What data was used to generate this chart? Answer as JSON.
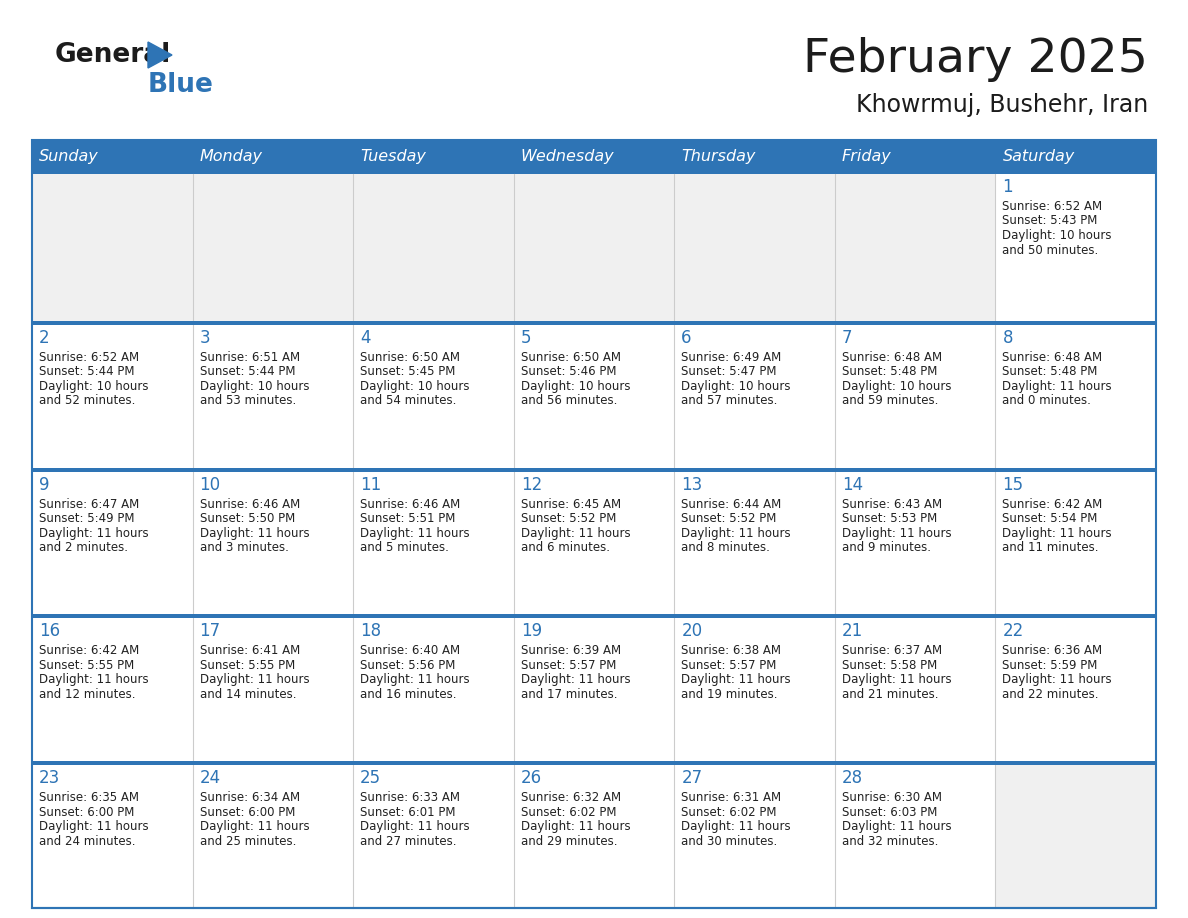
{
  "title": "February 2025",
  "subtitle": "Khowrmuj, Bushehr, Iran",
  "days_of_week": [
    "Sunday",
    "Monday",
    "Tuesday",
    "Wednesday",
    "Thursday",
    "Friday",
    "Saturday"
  ],
  "header_bg": "#2E74B5",
  "header_text": "#FFFFFF",
  "cell_bg_white": "#FFFFFF",
  "cell_bg_gray": "#F0F0F0",
  "separator_color": "#2E74B5",
  "grid_line_color": "#CCCCCC",
  "text_color": "#222222",
  "day_num_color": "#2E74B5",
  "calendar_data": [
    [
      {
        "day": null,
        "info": null
      },
      {
        "day": null,
        "info": null
      },
      {
        "day": null,
        "info": null
      },
      {
        "day": null,
        "info": null
      },
      {
        "day": null,
        "info": null
      },
      {
        "day": null,
        "info": null
      },
      {
        "day": 1,
        "info": "Sunrise: 6:52 AM\nSunset: 5:43 PM\nDaylight: 10 hours\nand 50 minutes."
      }
    ],
    [
      {
        "day": 2,
        "info": "Sunrise: 6:52 AM\nSunset: 5:44 PM\nDaylight: 10 hours\nand 52 minutes."
      },
      {
        "day": 3,
        "info": "Sunrise: 6:51 AM\nSunset: 5:44 PM\nDaylight: 10 hours\nand 53 minutes."
      },
      {
        "day": 4,
        "info": "Sunrise: 6:50 AM\nSunset: 5:45 PM\nDaylight: 10 hours\nand 54 minutes."
      },
      {
        "day": 5,
        "info": "Sunrise: 6:50 AM\nSunset: 5:46 PM\nDaylight: 10 hours\nand 56 minutes."
      },
      {
        "day": 6,
        "info": "Sunrise: 6:49 AM\nSunset: 5:47 PM\nDaylight: 10 hours\nand 57 minutes."
      },
      {
        "day": 7,
        "info": "Sunrise: 6:48 AM\nSunset: 5:48 PM\nDaylight: 10 hours\nand 59 minutes."
      },
      {
        "day": 8,
        "info": "Sunrise: 6:48 AM\nSunset: 5:48 PM\nDaylight: 11 hours\nand 0 minutes."
      }
    ],
    [
      {
        "day": 9,
        "info": "Sunrise: 6:47 AM\nSunset: 5:49 PM\nDaylight: 11 hours\nand 2 minutes."
      },
      {
        "day": 10,
        "info": "Sunrise: 6:46 AM\nSunset: 5:50 PM\nDaylight: 11 hours\nand 3 minutes."
      },
      {
        "day": 11,
        "info": "Sunrise: 6:46 AM\nSunset: 5:51 PM\nDaylight: 11 hours\nand 5 minutes."
      },
      {
        "day": 12,
        "info": "Sunrise: 6:45 AM\nSunset: 5:52 PM\nDaylight: 11 hours\nand 6 minutes."
      },
      {
        "day": 13,
        "info": "Sunrise: 6:44 AM\nSunset: 5:52 PM\nDaylight: 11 hours\nand 8 minutes."
      },
      {
        "day": 14,
        "info": "Sunrise: 6:43 AM\nSunset: 5:53 PM\nDaylight: 11 hours\nand 9 minutes."
      },
      {
        "day": 15,
        "info": "Sunrise: 6:42 AM\nSunset: 5:54 PM\nDaylight: 11 hours\nand 11 minutes."
      }
    ],
    [
      {
        "day": 16,
        "info": "Sunrise: 6:42 AM\nSunset: 5:55 PM\nDaylight: 11 hours\nand 12 minutes."
      },
      {
        "day": 17,
        "info": "Sunrise: 6:41 AM\nSunset: 5:55 PM\nDaylight: 11 hours\nand 14 minutes."
      },
      {
        "day": 18,
        "info": "Sunrise: 6:40 AM\nSunset: 5:56 PM\nDaylight: 11 hours\nand 16 minutes."
      },
      {
        "day": 19,
        "info": "Sunrise: 6:39 AM\nSunset: 5:57 PM\nDaylight: 11 hours\nand 17 minutes."
      },
      {
        "day": 20,
        "info": "Sunrise: 6:38 AM\nSunset: 5:57 PM\nDaylight: 11 hours\nand 19 minutes."
      },
      {
        "day": 21,
        "info": "Sunrise: 6:37 AM\nSunset: 5:58 PM\nDaylight: 11 hours\nand 21 minutes."
      },
      {
        "day": 22,
        "info": "Sunrise: 6:36 AM\nSunset: 5:59 PM\nDaylight: 11 hours\nand 22 minutes."
      }
    ],
    [
      {
        "day": 23,
        "info": "Sunrise: 6:35 AM\nSunset: 6:00 PM\nDaylight: 11 hours\nand 24 minutes."
      },
      {
        "day": 24,
        "info": "Sunrise: 6:34 AM\nSunset: 6:00 PM\nDaylight: 11 hours\nand 25 minutes."
      },
      {
        "day": 25,
        "info": "Sunrise: 6:33 AM\nSunset: 6:01 PM\nDaylight: 11 hours\nand 27 minutes."
      },
      {
        "day": 26,
        "info": "Sunrise: 6:32 AM\nSunset: 6:02 PM\nDaylight: 11 hours\nand 29 minutes."
      },
      {
        "day": 27,
        "info": "Sunrise: 6:31 AM\nSunset: 6:02 PM\nDaylight: 11 hours\nand 30 minutes."
      },
      {
        "day": 28,
        "info": "Sunrise: 6:30 AM\nSunset: 6:03 PM\nDaylight: 11 hours\nand 32 minutes."
      },
      {
        "day": null,
        "info": null
      }
    ]
  ]
}
